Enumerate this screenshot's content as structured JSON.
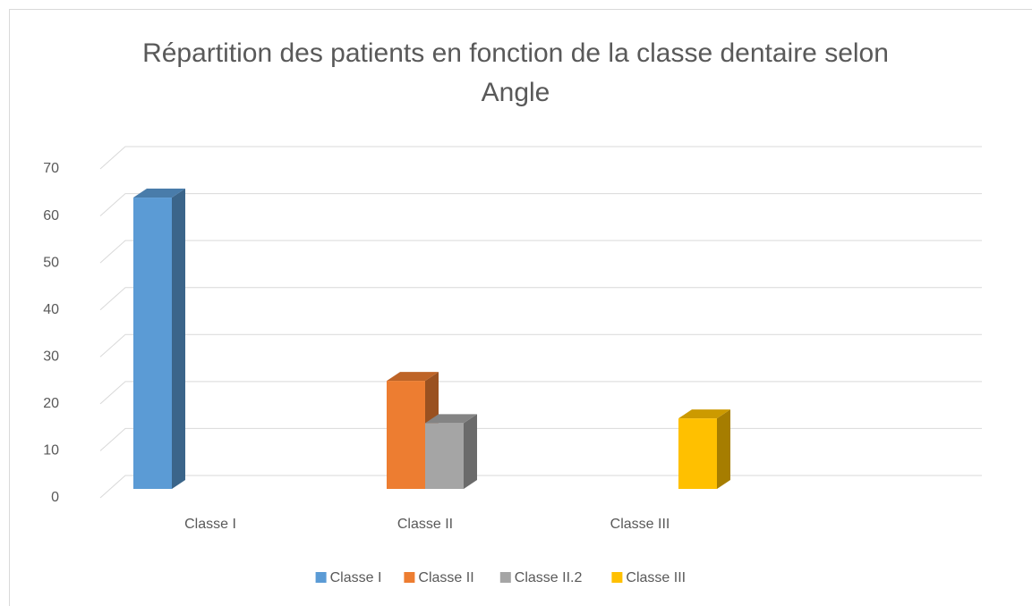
{
  "chart_data": {
    "type": "bar3d",
    "title": "Répartition des patients en fonction de la classe dentaire selon Angle",
    "categories": [
      "Classe I",
      "Classe II",
      "Classe III"
    ],
    "series": [
      {
        "name": "Classe I",
        "color": "#5b9bd5",
        "values": [
          62,
          null,
          null
        ]
      },
      {
        "name": "Classe II",
        "color": "#ed7d31",
        "values": [
          null,
          23,
          null
        ]
      },
      {
        "name": "Classe II.2",
        "color": "#a5a5a5",
        "values": [
          null,
          14,
          null
        ]
      },
      {
        "name": "Classe III",
        "color": "#ffc000",
        "values": [
          null,
          null,
          15
        ]
      }
    ],
    "ylim": [
      0,
      70
    ],
    "yticks": [
      0,
      10,
      20,
      30,
      40,
      50,
      60,
      70
    ],
    "grid": true,
    "legend": "bottom"
  }
}
